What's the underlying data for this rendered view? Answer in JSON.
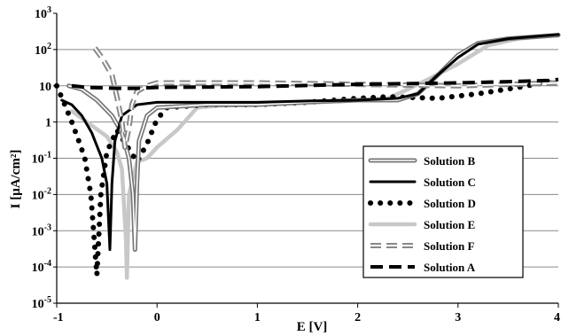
{
  "chart_data": {
    "type": "line",
    "xlabel": "E [V]",
    "ylabel": "I [μA/cm²]",
    "xlim": [
      -1,
      4
    ],
    "ylim": [
      1e-05,
      1000
    ],
    "y_scale": "log",
    "grid": "horizontal",
    "legend_position": "right",
    "x_ticks": [
      {
        "value": -1,
        "label": "-1"
      },
      {
        "value": 0,
        "label": "0"
      },
      {
        "value": 1,
        "label": "1"
      },
      {
        "value": 2,
        "label": "2"
      },
      {
        "value": 3,
        "label": "3"
      },
      {
        "value": 4,
        "label": "4"
      }
    ],
    "y_ticks": [
      {
        "value": 1000,
        "label": "10",
        "exp": "3"
      },
      {
        "value": 100,
        "label": "10",
        "exp": "2"
      },
      {
        "value": 10,
        "label": "10",
        "exp": ""
      },
      {
        "value": 1,
        "label": "1",
        "exp": ""
      },
      {
        "value": 0.1,
        "label": "10",
        "exp": "-1"
      },
      {
        "value": 0.01,
        "label": "10",
        "exp": "-2"
      },
      {
        "value": 0.001,
        "label": "10",
        "exp": "-3"
      },
      {
        "value": 0.0001,
        "label": "10",
        "exp": "-4"
      },
      {
        "value": 1e-05,
        "label": "10",
        "exp": "-5"
      }
    ],
    "series": [
      {
        "name": "Solution B",
        "style": "double",
        "color": "#777777",
        "points": [
          [
            -0.88,
            10
          ],
          [
            -0.75,
            8
          ],
          [
            -0.6,
            4
          ],
          [
            -0.45,
            1.5
          ],
          [
            -0.35,
            0.5
          ],
          [
            -0.28,
            0.1
          ],
          [
            -0.24,
            0.01
          ],
          [
            -0.22,
            0.0003
          ],
          [
            -0.2,
            0.02
          ],
          [
            -0.18,
            0.3
          ],
          [
            -0.1,
            1.5
          ],
          [
            0,
            2.5
          ],
          [
            0.5,
            3
          ],
          [
            1,
            3
          ],
          [
            1.5,
            3.5
          ],
          [
            2,
            4
          ],
          [
            2.4,
            4
          ],
          [
            2.6,
            6
          ],
          [
            2.8,
            20
          ],
          [
            3,
            70
          ],
          [
            3.2,
            150
          ],
          [
            3.5,
            200
          ],
          [
            4,
            250
          ]
        ]
      },
      {
        "name": "Solution C",
        "style": "solid",
        "color": "#000000",
        "points": [
          [
            -0.95,
            4
          ],
          [
            -0.85,
            3
          ],
          [
            -0.75,
            1.5
          ],
          [
            -0.65,
            0.5
          ],
          [
            -0.55,
            0.1
          ],
          [
            -0.5,
            0.02
          ],
          [
            -0.47,
            0.0003
          ],
          [
            -0.45,
            0.02
          ],
          [
            -0.42,
            0.3
          ],
          [
            -0.35,
            1.5
          ],
          [
            -0.2,
            3
          ],
          [
            0,
            3.5
          ],
          [
            0.5,
            3.5
          ],
          [
            1,
            3.5
          ],
          [
            1.5,
            3.8
          ],
          [
            2,
            4
          ],
          [
            2.4,
            4.5
          ],
          [
            2.6,
            6
          ],
          [
            2.8,
            20
          ],
          [
            3,
            60
          ],
          [
            3.2,
            140
          ],
          [
            3.5,
            200
          ],
          [
            4,
            260
          ]
        ]
      },
      {
        "name": "Solution D",
        "style": "dotted",
        "color": "#000000",
        "points": [
          [
            -1,
            10
          ],
          [
            -0.92,
            3
          ],
          [
            -0.85,
            1
          ],
          [
            -0.78,
            0.3
          ],
          [
            -0.72,
            0.1
          ],
          [
            -0.66,
            0.01
          ],
          [
            -0.6,
            6e-05
          ],
          [
            -0.56,
            0.01
          ],
          [
            -0.5,
            0.15
          ],
          [
            -0.4,
            0.6
          ],
          [
            -0.2,
            0.08
          ],
          [
            -0.1,
            0.25
          ],
          [
            0,
            1.2
          ],
          [
            0.1,
            2.5
          ],
          [
            0.5,
            3
          ],
          [
            1,
            3
          ],
          [
            1.5,
            3.5
          ],
          [
            2,
            4.5
          ],
          [
            2.3,
            5
          ],
          [
            2.8,
            4.5
          ],
          [
            3.2,
            6
          ],
          [
            3.6,
            9
          ],
          [
            3.85,
            12
          ],
          [
            4,
            13
          ]
        ]
      },
      {
        "name": "Solution E",
        "style": "solid",
        "color": "#c8c8c8",
        "points": [
          [
            -0.85,
            2
          ],
          [
            -0.7,
            1
          ],
          [
            -0.5,
            0.4
          ],
          [
            -0.4,
            0.15
          ],
          [
            -0.35,
            0.05
          ],
          [
            -0.31,
            0.0006
          ],
          [
            -0.3,
            5e-05
          ],
          [
            -0.28,
            0.01
          ],
          [
            -0.2,
            0.08
          ],
          [
            -0.1,
            0.1
          ],
          [
            0,
            0.2
          ],
          [
            0.2,
            0.6
          ],
          [
            0.4,
            2.5
          ],
          [
            0.6,
            2.8
          ],
          [
            1,
            3
          ],
          [
            1.5,
            3.5
          ],
          [
            2,
            4
          ],
          [
            2.3,
            4.5
          ],
          [
            2.5,
            8
          ],
          [
            2.7,
            15
          ],
          [
            3,
            40
          ],
          [
            3.3,
            130
          ],
          [
            3.6,
            200
          ],
          [
            4,
            250
          ]
        ]
      },
      {
        "name": "Solution F",
        "style": "dashed-double",
        "color": "#888888",
        "points": [
          [
            -0.62,
            110
          ],
          [
            -0.55,
            60
          ],
          [
            -0.45,
            20
          ],
          [
            -0.4,
            5
          ],
          [
            -0.35,
            1
          ],
          [
            -0.32,
            0.2
          ],
          [
            -0.28,
            0.7
          ],
          [
            -0.25,
            3
          ],
          [
            -0.2,
            7
          ],
          [
            -0.1,
            10
          ],
          [
            0,
            12
          ],
          [
            1,
            12
          ],
          [
            2,
            11
          ],
          [
            3,
            10
          ],
          [
            4,
            12
          ]
        ]
      },
      {
        "name": "Solution A",
        "style": "dashed",
        "color": "#000000",
        "points": [
          [
            -0.85,
            10
          ],
          [
            -0.7,
            9
          ],
          [
            -0.4,
            8.5
          ],
          [
            -0.2,
            8.5
          ],
          [
            0,
            9
          ],
          [
            1,
            9.5
          ],
          [
            2,
            11
          ],
          [
            3,
            12
          ],
          [
            3.5,
            13
          ],
          [
            3.9,
            14
          ],
          [
            4,
            15
          ]
        ]
      }
    ]
  }
}
